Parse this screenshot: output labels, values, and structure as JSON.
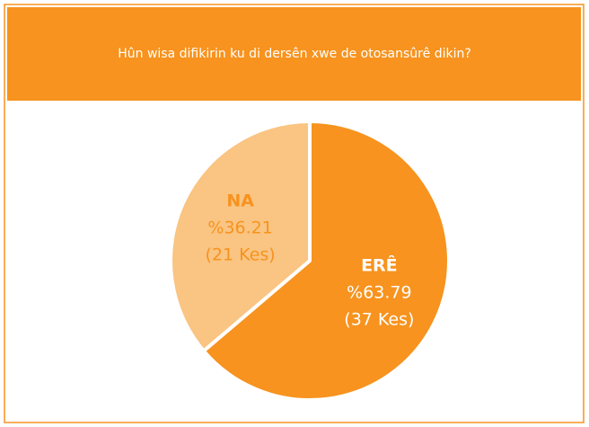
{
  "chart_data": {
    "type": "pie",
    "title": "Hûn wisa difikirin ku di dersên xwe de otosansûrê dikin?",
    "categories": [
      "ERÊ",
      "NA"
    ],
    "values": [
      63.79,
      36.21
    ],
    "value_labels": [
      "%63.79",
      "%36.21"
    ],
    "counts": [
      37,
      21
    ],
    "count_labels": [
      "(37 Kes)",
      "(21 Kes)"
    ],
    "colors": [
      "#f7931e",
      "#fac482"
    ]
  }
}
